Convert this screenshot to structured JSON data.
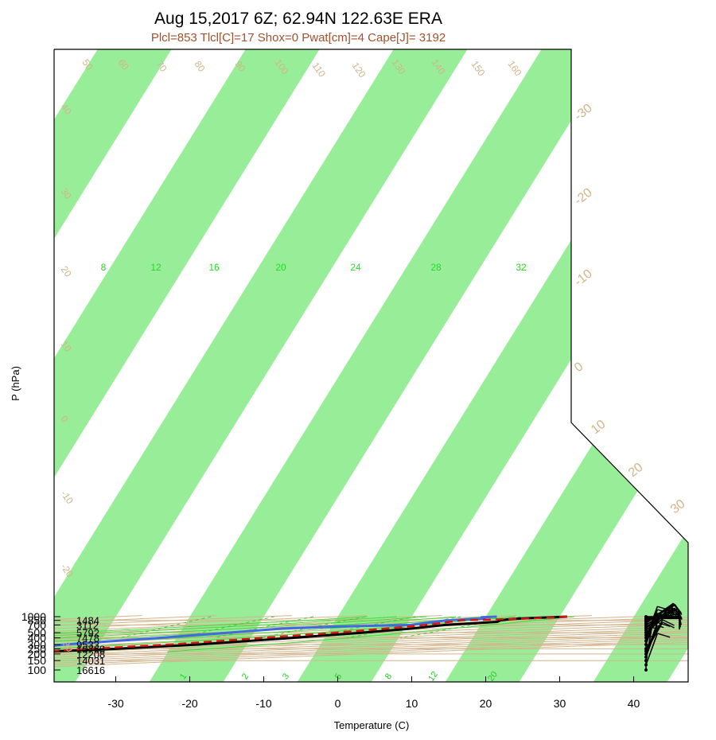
{
  "title": "Aug 15,2017 6Z; 62.94N 122.63E ERA",
  "subtitle": "Plcl=853 Tlcl[C]=17 Shox=0 Pwat[cm]=4 Cape[J]= 3192",
  "colors": {
    "temperature": "#000000",
    "dewpoint": "#4169e1",
    "parcel": "#dd1111",
    "band": "#98ee98",
    "isotherm_label": "#d2b48c",
    "dry_adiabat": "#d2b48c",
    "moist_adiabat": "#33dd33",
    "mixing_ratio": "#33cc33",
    "subtitle": "#a0522d"
  },
  "chart_data": {
    "type": "line",
    "title": "Aug 15,2017 6Z; 62.94N 122.63E ERA",
    "subtitle": "Plcl=853 Tlcl[C]=17 Shox=0 Pwat[cm]=4 Cape[J]= 3192",
    "xlabel": "Temperature (C)",
    "ylabel": "P (hPa)",
    "xlim": [
      -33,
      52
    ],
    "ylim": [
      1000,
      100
    ],
    "y_scale": "log",
    "x_ticks": [
      -30,
      -20,
      -10,
      0,
      10,
      20,
      30,
      40
    ],
    "y_ticks": [
      100,
      150,
      200,
      250,
      300,
      400,
      500,
      700,
      850,
      1000
    ],
    "heights": [
      {
        "p": 100,
        "label": "16616"
      },
      {
        "p": 150,
        "label": "14031"
      },
      {
        "p": 200,
        "label": "12208"
      },
      {
        "p": 250,
        "label": "10768"
      },
      {
        "p": 300,
        "label": "9533"
      },
      {
        "p": 400,
        "label": "7478"
      },
      {
        "p": 500,
        "label": "5792"
      },
      {
        "p": 700,
        "label": "3112"
      },
      {
        "p": 850,
        "label": "1484"
      }
    ],
    "isotherm_labels": [
      {
        "t": 50,
        "p": 210
      },
      {
        "t": 40,
        "p": 250
      },
      {
        "t": 30,
        "p": 310
      },
      {
        "t": 20,
        "p": 375
      },
      {
        "t": 10,
        "p": 460
      },
      {
        "t": 0,
        "p": 555
      },
      {
        "t": -10,
        "p": 675
      },
      {
        "t": -20,
        "p": 800
      },
      {
        "t": -30,
        "p": 960
      }
    ],
    "isotherm_right_labels": [
      "-30",
      "-20",
      "-10",
      "0",
      "10",
      "20",
      "30"
    ],
    "theta_labels": [
      {
        "label": "50",
        "pos": "top"
      },
      {
        "label": "60",
        "pos": "top"
      },
      {
        "label": "70",
        "pos": "top"
      },
      {
        "label": "80",
        "pos": "top"
      },
      {
        "label": "90",
        "pos": "top"
      },
      {
        "label": "100",
        "pos": "top"
      },
      {
        "label": "110",
        "pos": "top"
      },
      {
        "label": "120",
        "pos": "top"
      },
      {
        "label": "130",
        "pos": "top"
      },
      {
        "label": "140",
        "pos": "top"
      },
      {
        "label": "150",
        "pos": "top"
      },
      {
        "label": "160",
        "pos": "top"
      },
      {
        "label": "40",
        "pos": "left"
      },
      {
        "label": "30",
        "pos": "left"
      },
      {
        "label": "20",
        "pos": "left"
      },
      {
        "label": "10",
        "pos": "left"
      },
      {
        "label": "0",
        "pos": "left"
      },
      {
        "label": "-10",
        "pos": "left"
      },
      {
        "label": "-20",
        "pos": "left"
      },
      {
        "label": "-30",
        "pos": "left"
      }
    ],
    "moist_adiabat_labels": [
      "8",
      "12",
      "16",
      "20",
      "24",
      "28",
      "32"
    ],
    "mixing_ratio_labels": [
      "1",
      "2",
      "3",
      "5",
      "8",
      "12",
      "20"
    ],
    "series": [
      {
        "name": "temperature",
        "points": [
          [
            1000,
            31.0
          ],
          [
            925,
            25.0
          ],
          [
            900,
            23.5
          ],
          [
            850,
            22.3
          ],
          [
            800,
            22.0
          ],
          [
            700,
            15.2
          ],
          [
            600,
            11.0
          ],
          [
            500,
            4.5
          ],
          [
            400,
            -4.5
          ],
          [
            300,
            -16.5
          ],
          [
            250,
            -27.0
          ],
          [
            225,
            -35.0
          ],
          [
            200,
            -41.0
          ],
          [
            175,
            -41.5
          ],
          [
            150,
            -44.0
          ],
          [
            125,
            -54.0
          ],
          [
            100,
            -63.0
          ]
        ]
      },
      {
        "name": "dewpoint",
        "points": [
          [
            1000,
            21.5
          ],
          [
            975,
            19.5
          ],
          [
            950,
            20.0
          ],
          [
            925,
            20.0
          ],
          [
            850,
            15.0
          ],
          [
            800,
            13.5
          ],
          [
            700,
            10.5
          ],
          [
            650,
            0.5
          ],
          [
            600,
            -6.5
          ],
          [
            500,
            -13.5
          ],
          [
            400,
            -22.5
          ],
          [
            350,
            -28.0
          ],
          [
            300,
            -34.5
          ],
          [
            250,
            -40.0
          ],
          [
            225,
            -47.0
          ],
          [
            200,
            -52.5
          ],
          [
            175,
            -61.0
          ],
          [
            150,
            -68.0
          ],
          [
            125,
            -74.0
          ],
          [
            100,
            -77.0
          ]
        ]
      },
      {
        "name": "parcel",
        "points": [
          [
            1000,
            31.0
          ],
          [
            925,
            26.0
          ],
          [
            853,
            17.0
          ],
          [
            800,
            15.6
          ],
          [
            700,
            12.5
          ],
          [
            600,
            7.5
          ],
          [
            500,
            1.0
          ],
          [
            400,
            -8.5
          ],
          [
            300,
            -20.5
          ],
          [
            250,
            -30.5
          ],
          [
            200,
            -43.0
          ]
        ]
      }
    ],
    "winds": [
      {
        "p": 1000,
        "dir": 270,
        "kt": 5
      },
      {
        "p": 975,
        "dir": 270,
        "kt": 10
      },
      {
        "p": 950,
        "dir": 270,
        "kt": 10
      },
      {
        "p": 925,
        "dir": 270,
        "kt": 10
      },
      {
        "p": 900,
        "dir": 265,
        "kt": 10
      },
      {
        "p": 875,
        "dir": 260,
        "kt": 10
      },
      {
        "p": 850,
        "dir": 250,
        "kt": 10
      },
      {
        "p": 825,
        "dir": 240,
        "kt": 15
      },
      {
        "p": 800,
        "dir": 240,
        "kt": 15
      },
      {
        "p": 775,
        "dir": 235,
        "kt": 15
      },
      {
        "p": 750,
        "dir": 235,
        "kt": 15
      },
      {
        "p": 700,
        "dir": 240,
        "kt": 15
      },
      {
        "p": 650,
        "dir": 240,
        "kt": 10
      },
      {
        "p": 600,
        "dir": 230,
        "kt": 15
      },
      {
        "p": 550,
        "dir": 230,
        "kt": 15
      },
      {
        "p": 500,
        "dir": 230,
        "kt": 15
      },
      {
        "p": 450,
        "dir": 220,
        "kt": 10
      },
      {
        "p": 400,
        "dir": 200,
        "kt": 10
      },
      {
        "p": 350,
        "dir": 200,
        "kt": 10
      },
      {
        "p": 300,
        "dir": 200,
        "kt": 10
      },
      {
        "p": 250,
        "dir": 210,
        "kt": 10
      },
      {
        "p": 225,
        "dir": 210,
        "kt": 10
      },
      {
        "p": 200,
        "dir": 200,
        "kt": 10
      },
      {
        "p": 175,
        "dir": 200,
        "kt": 5
      },
      {
        "p": 150,
        "dir": 190,
        "kt": 5
      },
      {
        "p": 125,
        "dir": 200,
        "kt": 10
      },
      {
        "p": 100,
        "dir": 180,
        "kt": 5
      }
    ]
  }
}
